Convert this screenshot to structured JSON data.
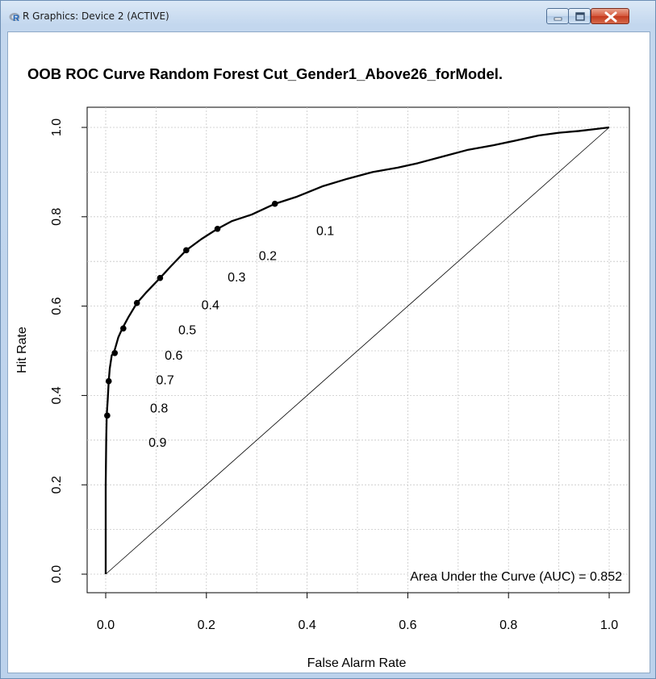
{
  "window": {
    "title": "R Graphics: Device 2 (ACTIVE)",
    "icon": "r-logo-icon",
    "controls": [
      "minimize-icon",
      "maximize-icon",
      "close-icon"
    ]
  },
  "chart_data": {
    "type": "line",
    "title": "OOB ROC Curve Random Forest Cut_Gender1_Above26_forModel.",
    "xlabel": "False Alarm Rate",
    "ylabel": "Hit Rate",
    "xlim": [
      0,
      1
    ],
    "ylim": [
      0,
      1
    ],
    "x_ticks": [
      "0.0",
      "0.2",
      "0.4",
      "0.6",
      "0.8",
      "1.0"
    ],
    "y_ticks": [
      "0.0",
      "0.2",
      "0.4",
      "0.6",
      "0.8",
      "1.0"
    ],
    "grid": true,
    "legend": "Area Under the Curve (AUC) = 0.852",
    "series": [
      {
        "name": "ROC",
        "x": [
          0.0,
          0.0,
          0.001,
          0.002,
          0.004,
          0.006,
          0.008,
          0.012,
          0.016,
          0.02,
          0.025,
          0.033,
          0.045,
          0.062,
          0.08,
          0.108,
          0.13,
          0.16,
          0.19,
          0.222,
          0.25,
          0.29,
          0.336,
          0.38,
          0.43,
          0.48,
          0.53,
          0.58,
          0.62,
          0.67,
          0.72,
          0.77,
          0.82,
          0.86,
          0.9,
          0.94,
          0.97,
          1.0
        ],
        "y": [
          0.0,
          0.2,
          0.3,
          0.355,
          0.39,
          0.432,
          0.46,
          0.49,
          0.495,
          0.51,
          0.53,
          0.55,
          0.575,
          0.607,
          0.63,
          0.663,
          0.69,
          0.725,
          0.75,
          0.773,
          0.79,
          0.805,
          0.829,
          0.845,
          0.868,
          0.885,
          0.9,
          0.91,
          0.92,
          0.935,
          0.95,
          0.96,
          0.972,
          0.982,
          0.988,
          0.992,
          0.996,
          1.0
        ]
      },
      {
        "name": "diagonal",
        "x": [
          0,
          1
        ],
        "y": [
          0,
          1
        ]
      }
    ],
    "cutoff_points": [
      {
        "label": "0.1",
        "x": 0.336,
        "y": 0.829
      },
      {
        "label": "0.2",
        "x": 0.222,
        "y": 0.773
      },
      {
        "label": "0.3",
        "x": 0.16,
        "y": 0.725
      },
      {
        "label": "0.4",
        "x": 0.108,
        "y": 0.663
      },
      {
        "label": "0.5",
        "x": 0.062,
        "y": 0.607
      },
      {
        "label": "0.6",
        "x": 0.035,
        "y": 0.55
      },
      {
        "label": "0.7",
        "x": 0.018,
        "y": 0.495
      },
      {
        "label": "0.8",
        "x": 0.006,
        "y": 0.432
      },
      {
        "label": "0.9",
        "x": 0.003,
        "y": 0.355
      }
    ]
  }
}
